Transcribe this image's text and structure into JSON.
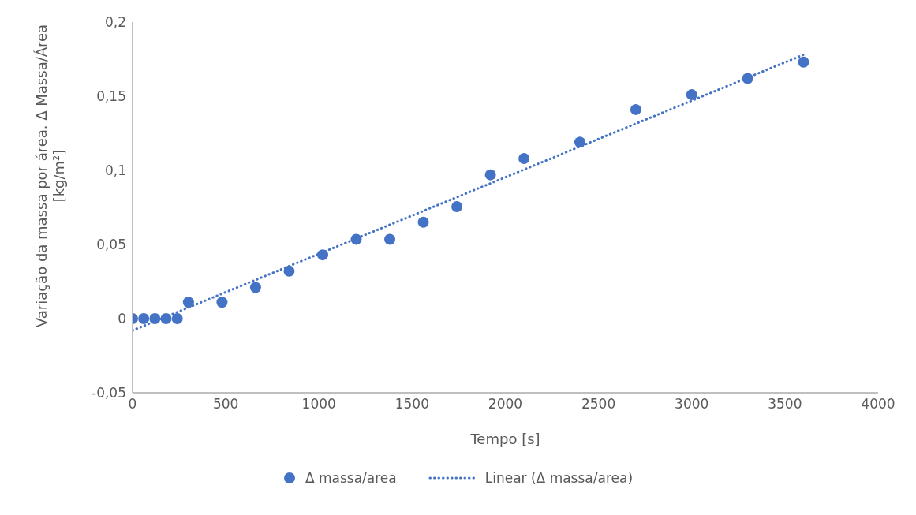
{
  "chart_data": {
    "type": "scatter",
    "xlabel": "Tempo [s]",
    "ylabel": "Variação da massa por área. Δ Massa/Área [kg/m²]",
    "x": [
      0,
      60,
      120,
      180,
      240,
      300,
      480,
      660,
      840,
      1020,
      1200,
      1380,
      1560,
      1740,
      1920,
      2100,
      2400,
      2700,
      3000,
      3300,
      3600
    ],
    "series": [
      {
        "name": "Δ massa/area",
        "color": "#4472c4",
        "marker": "circle",
        "values": [
          0,
          0,
          0,
          0,
          0,
          0.011,
          0.011,
          0.021,
          0.032,
          0.043,
          0.0535,
          0.0535,
          0.065,
          0.0755,
          0.097,
          0.108,
          0.119,
          0.141,
          0.151,
          0.162,
          0.173
        ]
      },
      {
        "name": "Linear (Δ massa/area)",
        "type": "line",
        "color": "#4472c4",
        "line_style": "dotted",
        "marker": "none",
        "x": [
          0,
          3600
        ],
        "values": [
          -0.008,
          0.178
        ]
      }
    ],
    "xlim": [
      0,
      4000
    ],
    "xticks": [
      0,
      500,
      1000,
      1500,
      2000,
      2500,
      3000,
      3500,
      4000
    ],
    "ylim": [
      -0.05,
      0.2
    ],
    "yticks": [
      {
        "value": -0.05,
        "label": "-0,05"
      },
      0,
      {
        "value": 0.05,
        "label": "0,05"
      },
      {
        "value": 0.1,
        "label": "0,1"
      },
      {
        "value": 0.15,
        "label": "0,15"
      },
      {
        "value": 0.2,
        "label": "0,2"
      }
    ],
    "grid": false,
    "legend": "bottom"
  }
}
